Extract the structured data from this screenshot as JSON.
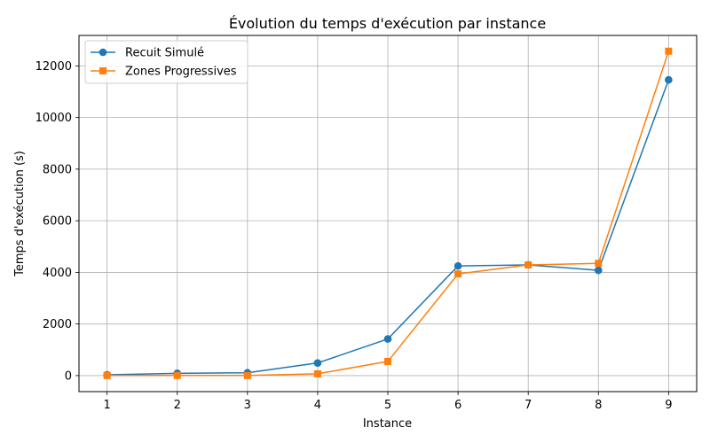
{
  "chart_data": {
    "type": "line",
    "title": "Évolution du temps d'exécution par instance",
    "xlabel": "Instance",
    "ylabel": "Temps d'exécution (s)",
    "x": [
      1,
      2,
      3,
      4,
      5,
      6,
      7,
      8,
      9
    ],
    "xlim": [
      0.6,
      9.4
    ],
    "ylim": [
      -620,
      13180
    ],
    "xticks": [
      1,
      2,
      3,
      4,
      5,
      6,
      7,
      8,
      9
    ],
    "yticks": [
      0,
      2000,
      4000,
      6000,
      8000,
      10000,
      12000
    ],
    "grid": true,
    "legend_position": "top-left",
    "series": [
      {
        "name": "Recuit Simulé",
        "color": "#1f77b4",
        "marker": "circle",
        "values": [
          30,
          90,
          110,
          490,
          1420,
          4250,
          4290,
          4080,
          11460
        ]
      },
      {
        "name": "Zones Progressives",
        "color": "#ff7f0e",
        "marker": "square",
        "values": [
          5,
          5,
          5,
          70,
          550,
          3940,
          4290,
          4350,
          12570
        ]
      }
    ]
  }
}
